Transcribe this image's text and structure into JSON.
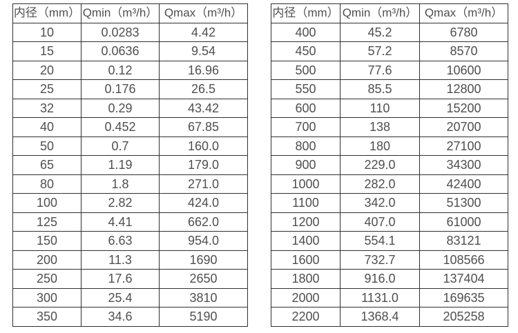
{
  "colors": {
    "background": "#ffffff",
    "border": "#2f2f2f",
    "text": "#4f4f4f"
  },
  "chart_data": [
    {
      "type": "table",
      "title": "",
      "headers": [
        "内径（mm）",
        "Qmin（m³/h）",
        "Qmax（m³/h）"
      ],
      "rows": [
        [
          "10",
          "0.0283",
          "4.42"
        ],
        [
          "15",
          "0.0636",
          "9.54"
        ],
        [
          "20",
          "0.12",
          "16.96"
        ],
        [
          "25",
          "0.176",
          "26.5"
        ],
        [
          "32",
          "0.29",
          "43.42"
        ],
        [
          "40",
          "0.452",
          "67.85"
        ],
        [
          "50",
          "0.7",
          "160.0"
        ],
        [
          "65",
          "1.19",
          "179.0"
        ],
        [
          "80",
          "1.8",
          "271.0"
        ],
        [
          "100",
          "2.82",
          "424.0"
        ],
        [
          "125",
          "4.41",
          "662.0"
        ],
        [
          "150",
          "6.63",
          "954.0"
        ],
        [
          "200",
          "11.3",
          "1690"
        ],
        [
          "250",
          "17.6",
          "2650"
        ],
        [
          "300",
          "25.4",
          "3810"
        ],
        [
          "350",
          "34.6",
          "5190"
        ]
      ]
    },
    {
      "type": "table",
      "title": "",
      "headers": [
        "内径（mm）",
        "Qmin（m³/h）",
        "Qmax（m³/h）"
      ],
      "rows": [
        [
          "400",
          "45.2",
          "6780"
        ],
        [
          "450",
          "57.2",
          "8570"
        ],
        [
          "500",
          "77.6",
          "10600"
        ],
        [
          "550",
          "85.5",
          "12800"
        ],
        [
          "600",
          "110",
          "15200"
        ],
        [
          "700",
          "138",
          "20700"
        ],
        [
          "800",
          "180",
          "27100"
        ],
        [
          "900",
          "229.0",
          "34300"
        ],
        [
          "1000",
          "282.0",
          "42400"
        ],
        [
          "1100",
          "342.0",
          "51300"
        ],
        [
          "1200",
          "407.0",
          "61000"
        ],
        [
          "1400",
          "554.1",
          "83121"
        ],
        [
          "1600",
          "732.7",
          "108566"
        ],
        [
          "1800",
          "916.0",
          "137404"
        ],
        [
          "2000",
          "1131.0",
          "169635"
        ],
        [
          "2200",
          "1368.4",
          "205258"
        ]
      ]
    }
  ]
}
